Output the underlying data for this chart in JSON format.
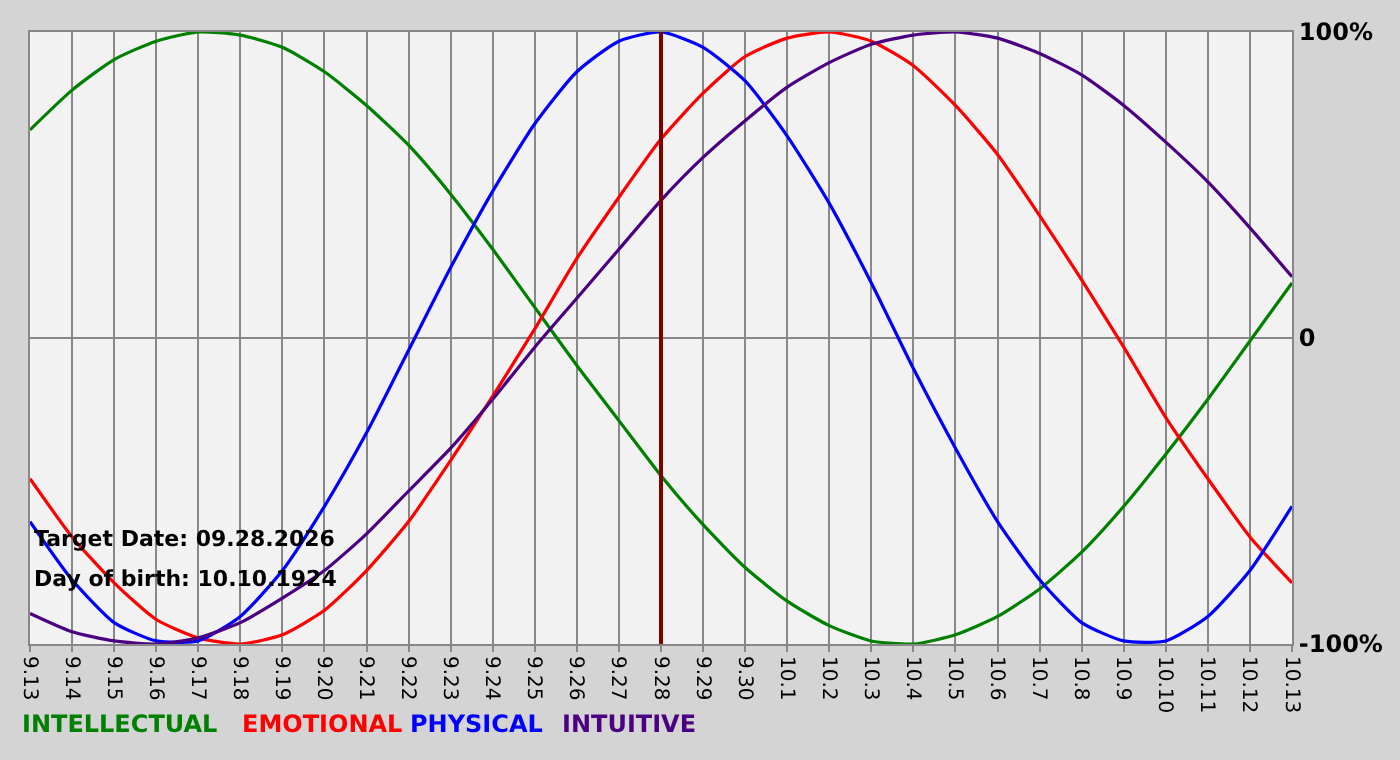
{
  "chart_data": {
    "type": "line",
    "categories": [
      "9.13",
      "9.14",
      "9.15",
      "9.16",
      "9.17",
      "9.18",
      "9.19",
      "9.20",
      "9.21",
      "9.22",
      "9.23",
      "9.24",
      "9.25",
      "9.26",
      "9.27",
      "9.28",
      "9.29",
      "9.30",
      "10.1",
      "10.2",
      "10.3",
      "10.4",
      "10.5",
      "10.6",
      "10.7",
      "10.8",
      "10.9",
      "10.10",
      "10.11",
      "10.12",
      "10.13"
    ],
    "series": [
      {
        "name": "INTELLECTUAL",
        "color": "#008000",
        "values": [
          68,
          81,
          91,
          97,
          100,
          99,
          95,
          87,
          76,
          63,
          47,
          29,
          10,
          -9,
          -27,
          -45,
          -61,
          -75,
          -86,
          -94,
          -99,
          -100,
          -97,
          -91,
          -82,
          -70,
          -55,
          -38,
          -20,
          -1,
          18
        ]
      },
      {
        "name": "EMOTIONAL",
        "color": "#ff0000",
        "values": [
          -46,
          -65,
          -80,
          -92,
          -98,
          -100,
          -97,
          -89,
          -76,
          -60,
          -40,
          -19,
          3,
          26,
          46,
          65,
          80,
          92,
          98,
          100,
          97,
          89,
          76,
          60,
          40,
          19,
          -3,
          -26,
          -46,
          -65,
          -80
        ]
      },
      {
        "name": "PHYSICAL",
        "color": "#0000ff",
        "values": [
          -60,
          -79,
          -93,
          -99,
          -99,
          -91,
          -76,
          -55,
          -31,
          -4,
          23,
          48,
          70,
          87,
          97,
          100,
          95,
          84,
          66,
          44,
          18,
          -10,
          -36,
          -60,
          -79,
          -93,
          -99,
          -99,
          -91,
          -76,
          -55
        ]
      },
      {
        "name": "INTUITIVE",
        "color": "#4b0082",
        "values": [
          -90,
          -96,
          -99,
          -100,
          -98,
          -93,
          -85,
          -76,
          -64,
          -50,
          -36,
          -20,
          -3,
          13,
          29,
          45,
          59,
          71,
          82,
          90,
          96,
          99,
          100,
          98,
          93,
          86,
          76,
          64,
          51,
          36,
          20
        ]
      }
    ],
    "ylim": [
      -100,
      100
    ],
    "yticks": [
      {
        "value": 100,
        "label": "100%"
      },
      0,
      {
        "value": -100,
        "label": "-100%"
      }
    ],
    "ref_lines": [
      {
        "axis": "x",
        "value": "9.28",
        "color": "#800000"
      }
    ],
    "annotations": [
      "Target Date: 09.28.2026",
      "Day of birth: 10.10.1924"
    ],
    "grid": true,
    "legend": "bottom left",
    "marker": "none",
    "line_style": "solid"
  }
}
